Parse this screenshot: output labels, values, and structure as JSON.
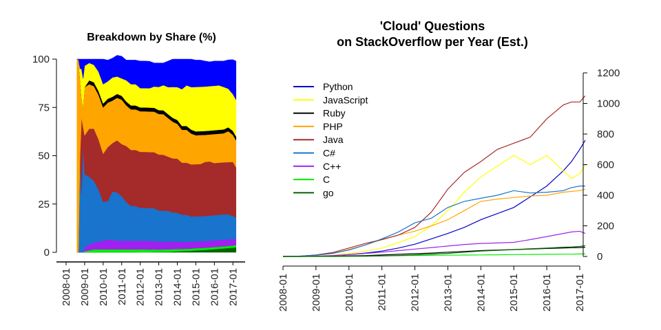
{
  "chart_data": [
    {
      "type": "area",
      "title": "Breakdown by Share (%)",
      "xlabel": "",
      "ylabel": "",
      "x_tick_labels": [
        "2008-01",
        "2009-01",
        "2010-01",
        "2011-01",
        "2012-01",
        "2013-01",
        "2014-01",
        "2015-01",
        "2016-01",
        "2017-01"
      ],
      "y_tick_labels": [
        "0",
        "25",
        "50",
        "75",
        "100"
      ],
      "ylim": [
        0,
        100
      ],
      "stacked": true,
      "x": [
        "2008-08",
        "2008-09",
        "2008-10",
        "2008-11",
        "2008-12",
        "2009-01",
        "2009-04",
        "2009-07",
        "2009-10",
        "2010-01",
        "2010-04",
        "2010-07",
        "2010-10",
        "2011-01",
        "2011-04",
        "2011-07",
        "2011-10",
        "2012-01",
        "2012-04",
        "2012-07",
        "2012-10",
        "2013-01",
        "2013-04",
        "2013-07",
        "2013-10",
        "2014-01",
        "2014-04",
        "2014-07",
        "2014-10",
        "2015-01",
        "2015-04",
        "2015-07",
        "2015-10",
        "2016-01",
        "2016-04",
        "2016-07",
        "2016-10",
        "2017-01",
        "2017-03"
      ],
      "series": [
        {
          "name": "go",
          "color": "#006400",
          "values": [
            0,
            0,
            0,
            0,
            0,
            0,
            0,
            0,
            0,
            0,
            0,
            0,
            0,
            0,
            0,
            0,
            0,
            0.1,
            0.1,
            0.1,
            0.2,
            0.2,
            0.3,
            0.3,
            0.4,
            0.5,
            0.6,
            0.7,
            0.8,
            1.0,
            1.1,
            1.2,
            1.4,
            1.6,
            1.8,
            2.0,
            2.2,
            2.4,
            2.6
          ]
        },
        {
          "name": "C",
          "color": "#00ee00",
          "values": [
            0,
            0,
            0,
            0,
            0,
            0.5,
            1,
            1.5,
            1.5,
            1.5,
            1.5,
            1.5,
            1.5,
            1.5,
            1.5,
            1.5,
            1.5,
            1.4,
            1.4,
            1.3,
            1.3,
            1.2,
            1.2,
            1.2,
            1.2,
            1.2,
            1.1,
            1.1,
            1.1,
            1.1,
            1.1,
            1.1,
            1.1,
            1.1,
            1.1,
            1.1,
            1.1,
            1.1,
            1.1
          ]
        },
        {
          "name": "C++",
          "color": "#a020f0",
          "values": [
            0,
            0,
            0,
            0,
            0,
            2,
            3,
            3.5,
            4,
            4.5,
            5,
            5,
            4.5,
            4.5,
            4.5,
            4.5,
            4.5,
            4.5,
            4.5,
            4.5,
            4.3,
            4.2,
            4,
            4,
            4,
            3.8,
            3.7,
            3.6,
            3.6,
            3.5,
            3.5,
            3.5,
            3.5,
            3.5,
            3.5,
            3.5,
            3.4,
            3.3,
            3.3
          ]
        },
        {
          "name": "C#",
          "color": "#1874cd",
          "values": [
            0,
            0,
            50,
            30,
            55,
            38,
            35,
            32,
            27,
            20,
            20,
            25,
            25,
            23,
            20,
            18,
            18,
            17,
            17,
            17,
            17,
            16,
            16,
            16,
            15,
            15,
            14,
            14,
            13,
            13,
            13,
            13,
            13,
            13,
            13,
            13,
            13,
            12,
            11
          ]
        },
        {
          "name": "Java",
          "color": "#a52a2a",
          "values": [
            0,
            0,
            0,
            40,
            10,
            20,
            25,
            27,
            26,
            25,
            28,
            25,
            27,
            27,
            29,
            29,
            29,
            29,
            29,
            29,
            29,
            29,
            29,
            28,
            28,
            28,
            27,
            27,
            27,
            27,
            27,
            28,
            28,
            27,
            27,
            27,
            27,
            28,
            26
          ]
        },
        {
          "name": "PHP",
          "color": "#ffa500",
          "values": [
            100,
            100,
            40,
            10,
            10,
            25,
            23,
            22,
            23,
            24,
            23,
            22,
            22,
            23,
            21,
            21,
            21,
            21,
            21,
            21,
            21,
            21,
            21,
            20,
            19,
            18,
            17,
            17,
            16,
            15,
            15,
            14,
            14,
            15,
            15,
            15,
            16,
            14,
            14
          ]
        },
        {
          "name": "Ruby",
          "color": "#000000",
          "values": [
            0,
            0,
            0,
            0,
            0,
            0,
            2,
            2,
            2,
            2,
            2,
            2,
            2,
            2,
            2,
            2,
            2,
            2,
            2,
            2,
            2,
            2,
            2,
            2,
            2,
            2,
            2,
            2,
            2,
            2,
            2,
            2,
            2,
            2,
            2,
            2,
            2,
            2,
            2
          ]
        },
        {
          "name": "JavaScript",
          "color": "#ffff00",
          "values": [
            0,
            0,
            5,
            15,
            15,
            11,
            9,
            9,
            10,
            10,
            9,
            10,
            9,
            9,
            11,
            11,
            11,
            10,
            10,
            10,
            11,
            12,
            13,
            14,
            16,
            17,
            19,
            21,
            22,
            23,
            23,
            23,
            23,
            23,
            23,
            22,
            20,
            19,
            19
          ]
        },
        {
          "name": "Python",
          "color": "#0000ff",
          "values": [
            0,
            0,
            5,
            5,
            10,
            3.5,
            2,
            3,
            6.5,
            13,
            11,
            10,
            11,
            11.5,
            10.5,
            12.5,
            12.5,
            14,
            14,
            14,
            12.2,
            12.4,
            11.5,
            13.5,
            14.4,
            14.5,
            15.6,
            13.6,
            14.5,
            13.9,
            13.8,
            13.2,
            12.6,
            12.8,
            12.6,
            13.4,
            14.9,
            17.9,
            20
          ]
        }
      ]
    },
    {
      "type": "line",
      "title": "'Cloud' Questions",
      "subtitle": "on StackOverflow per Year (Est.)",
      "xlabel": "",
      "ylabel": "",
      "x_tick_labels": [
        "2008-01",
        "2009-01",
        "2010-01",
        "2011-01",
        "2012-01",
        "2013-01",
        "2014-01",
        "2015-01",
        "2016-01",
        "2017-01"
      ],
      "y_tick_labels": [
        "0",
        "200",
        "400",
        "600",
        "800",
        "1000",
        "1200"
      ],
      "ylim": [
        0,
        1200
      ],
      "y_axis_side": "right",
      "legend_position": "top-left",
      "x": [
        "2008-01",
        "2008-07",
        "2009-01",
        "2009-07",
        "2010-01",
        "2010-07",
        "2011-01",
        "2011-07",
        "2012-01",
        "2012-07",
        "2013-01",
        "2013-07",
        "2014-01",
        "2014-07",
        "2015-01",
        "2015-07",
        "2016-01",
        "2016-07",
        "2016-10",
        "2017-01",
        "2017-03"
      ],
      "series": [
        {
          "name": "Python",
          "color": "#0000cd",
          "values": [
            0,
            1,
            3,
            6,
            12,
            22,
            35,
            55,
            80,
            115,
            150,
            190,
            240,
            280,
            320,
            390,
            460,
            560,
            620,
            700,
            760
          ]
        },
        {
          "name": "JavaScript",
          "color": "#ffff00",
          "values": [
            0,
            1,
            3,
            8,
            18,
            35,
            55,
            90,
            130,
            200,
            300,
            420,
            520,
            590,
            660,
            600,
            660,
            560,
            510,
            540,
            600
          ]
        },
        {
          "name": "Ruby",
          "color": "#000000",
          "values": [
            0,
            0,
            1,
            2,
            4,
            6,
            10,
            14,
            18,
            22,
            28,
            33,
            38,
            42,
            45,
            48,
            52,
            55,
            57,
            58,
            60
          ]
        },
        {
          "name": "PHP",
          "color": "#ffa500",
          "values": [
            0,
            2,
            8,
            20,
            45,
            75,
            110,
            140,
            165,
            200,
            240,
            300,
            360,
            375,
            385,
            395,
            400,
            420,
            425,
            430,
            440
          ]
        },
        {
          "name": "Java",
          "color": "#a52a2a",
          "values": [
            0,
            2,
            10,
            25,
            55,
            85,
            110,
            140,
            190,
            290,
            440,
            550,
            620,
            700,
            740,
            780,
            900,
            990,
            1010,
            1010,
            1050
          ]
        },
        {
          "name": "C#",
          "color": "#1874cd",
          "values": [
            0,
            2,
            8,
            20,
            42,
            75,
            115,
            160,
            220,
            250,
            320,
            360,
            380,
            400,
            430,
            415,
            420,
            430,
            450,
            460,
            460
          ]
        },
        {
          "name": "C++",
          "color": "#a020f0",
          "values": [
            0,
            0,
            2,
            6,
            12,
            20,
            28,
            38,
            48,
            58,
            68,
            78,
            85,
            88,
            92,
            110,
            130,
            150,
            160,
            165,
            150
          ]
        },
        {
          "name": "C",
          "color": "#00ee00",
          "values": [
            0,
            0,
            1,
            1,
            2,
            3,
            4,
            5,
            6,
            7,
            8,
            9,
            10,
            11,
            12,
            13,
            14,
            15,
            15,
            16,
            16
          ]
        },
        {
          "name": "go",
          "color": "#006400",
          "values": [
            0,
            0,
            0,
            0,
            1,
            2,
            4,
            6,
            10,
            15,
            20,
            28,
            35,
            40,
            45,
            50,
            55,
            60,
            62,
            65,
            70
          ]
        }
      ]
    }
  ]
}
